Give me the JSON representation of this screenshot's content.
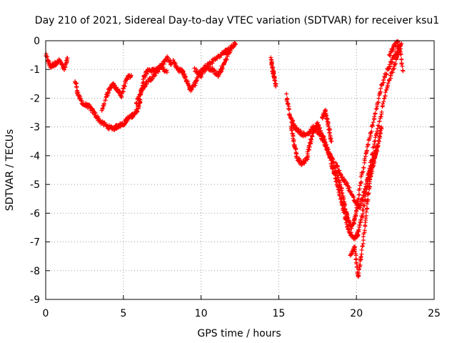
{
  "chart_data": {
    "type": "scatter",
    "title": "Day 210 of 2021, Sidereal Day-to-day VTEC variation (SDTVAR) for receiver ksu1",
    "xlabel": "GPS time / hours",
    "ylabel": "SDTVAR / TECUs",
    "xlim": [
      0,
      25
    ],
    "ylim": [
      -9,
      0
    ],
    "x_ticks": [
      "0",
      "5",
      "10",
      "15",
      "20",
      "25"
    ],
    "y_ticks": [
      "0",
      "-1",
      "-2",
      "-3",
      "-4",
      "-5",
      "-6",
      "-7",
      "-8",
      "-9"
    ],
    "grid": true,
    "marker": "+",
    "series": [
      {
        "color": "#ff0000",
        "curves": [
          [
            [
              0.0,
              -0.5
            ],
            [
              0.3,
              -0.9
            ],
            [
              0.6,
              -0.8
            ],
            [
              0.9,
              -0.7
            ],
            [
              1.2,
              -1.0
            ],
            [
              1.4,
              -0.6
            ]
          ],
          [
            [
              1.9,
              -1.4
            ],
            [
              2.1,
              -1.9
            ],
            [
              2.4,
              -2.2
            ],
            [
              2.8,
              -2.3
            ],
            [
              3.1,
              -2.5
            ],
            [
              3.5,
              -2.8
            ],
            [
              4.0,
              -3.0
            ],
            [
              4.4,
              -3.05
            ],
            [
              4.7,
              -2.95
            ],
            [
              5.0,
              -2.9
            ],
            [
              5.3,
              -2.7
            ],
            [
              5.6,
              -2.6
            ],
            [
              5.9,
              -2.4
            ],
            [
              6.1,
              -2.0
            ],
            [
              6.3,
              -1.3
            ],
            [
              6.6,
              -1.0
            ],
            [
              7.0,
              -1.05
            ],
            [
              7.4,
              -0.9
            ],
            [
              7.8,
              -0.6
            ],
            [
              8.1,
              -0.8
            ]
          ],
          [
            [
              3.6,
              -2.4
            ],
            [
              4.0,
              -1.8
            ],
            [
              4.3,
              -1.5
            ],
            [
              4.6,
              -1.7
            ],
            [
              4.9,
              -1.9
            ],
            [
              5.2,
              -1.3
            ],
            [
              5.5,
              -1.2
            ]
          ],
          [
            [
              5.8,
              -2.2
            ],
            [
              6.2,
              -1.7
            ],
            [
              6.6,
              -1.4
            ],
            [
              7.0,
              -1.2
            ],
            [
              7.4,
              -0.9
            ],
            [
              7.8,
              -1.1
            ]
          ],
          [
            [
              8.2,
              -0.7
            ],
            [
              8.5,
              -1.0
            ],
            [
              8.8,
              -1.05
            ],
            [
              9.0,
              -1.3
            ],
            [
              9.3,
              -1.7
            ],
            [
              9.6,
              -1.5
            ],
            [
              9.9,
              -1.1
            ],
            [
              10.3,
              -0.9
            ],
            [
              10.7,
              -1.0
            ],
            [
              11.1,
              -1.2
            ],
            [
              11.4,
              -0.9
            ],
            [
              11.7,
              -0.5
            ],
            [
              12.0,
              -0.2
            ],
            [
              12.2,
              -0.1
            ]
          ],
          [
            [
              9.6,
              -1.0
            ],
            [
              10.0,
              -1.2
            ],
            [
              10.5,
              -0.8
            ],
            [
              11.0,
              -0.6
            ],
            [
              11.5,
              -0.4
            ],
            [
              11.8,
              -0.3
            ]
          ],
          [
            [
              14.5,
              -0.6
            ],
            [
              14.6,
              -1.0
            ],
            [
              14.7,
              -1.2
            ],
            [
              14.8,
              -1.55
            ]
          ],
          [
            [
              15.5,
              -1.9
            ],
            [
              15.7,
              -2.6
            ],
            [
              16.0,
              -3.0
            ],
            [
              16.4,
              -3.2
            ],
            [
              16.8,
              -3.3
            ],
            [
              17.2,
              -3.0
            ],
            [
              17.6,
              -3.2
            ],
            [
              17.9,
              -3.5
            ],
            [
              18.2,
              -3.9
            ],
            [
              18.5,
              -4.2
            ],
            [
              18.8,
              -4.8
            ],
            [
              19.1,
              -5.3
            ],
            [
              19.3,
              -5.9
            ],
            [
              19.5,
              -6.3
            ],
            [
              19.7,
              -6.5
            ],
            [
              19.9,
              -6.2
            ],
            [
              20.1,
              -5.5
            ],
            [
              20.4,
              -4.5
            ],
            [
              20.8,
              -3.5
            ],
            [
              21.2,
              -2.6
            ],
            [
              21.6,
              -1.6
            ],
            [
              22.0,
              -1.0
            ],
            [
              22.4,
              -0.6
            ],
            [
              22.8,
              -0.15
            ]
          ],
          [
            [
              15.8,
              -3.0
            ],
            [
              16.0,
              -3.6
            ],
            [
              16.2,
              -4.1
            ],
            [
              16.5,
              -4.3
            ],
            [
              16.8,
              -4.1
            ],
            [
              17.0,
              -3.6
            ],
            [
              17.2,
              -3.2
            ],
            [
              17.5,
              -2.9
            ],
            [
              17.8,
              -3.3
            ],
            [
              18.1,
              -3.7
            ],
            [
              18.4,
              -4.3
            ],
            [
              18.7,
              -4.9
            ],
            [
              19.0,
              -5.5
            ],
            [
              19.2,
              -6.0
            ],
            [
              19.5,
              -6.6
            ],
            [
              19.8,
              -6.9
            ],
            [
              20.1,
              -6.7
            ],
            [
              20.4,
              -6.0
            ],
            [
              20.7,
              -5.0
            ],
            [
              21.0,
              -4.0
            ],
            [
              21.4,
              -3.0
            ],
            [
              21.8,
              -2.0
            ],
            [
              22.2,
              -1.2
            ],
            [
              22.6,
              -0.6
            ],
            [
              22.9,
              -0.1
            ]
          ],
          [
            [
              19.6,
              -7.5
            ],
            [
              19.9,
              -7.2
            ],
            [
              20.1,
              -8.2
            ],
            [
              20.3,
              -7.5
            ],
            [
              20.6,
              -6.2
            ],
            [
              20.8,
              -5.2
            ],
            [
              21.0,
              -4.5
            ],
            [
              21.2,
              -4.0
            ],
            [
              21.4,
              -3.6
            ],
            [
              21.6,
              -3.0
            ]
          ],
          [
            [
              18.7,
              -4.3
            ],
            [
              19.0,
              -4.7
            ],
            [
              19.4,
              -5.0
            ],
            [
              19.8,
              -5.5
            ],
            [
              20.2,
              -5.8
            ],
            [
              20.5,
              -5.3
            ],
            [
              20.8,
              -4.6
            ],
            [
              21.1,
              -4.1
            ],
            [
              21.3,
              -3.8
            ]
          ],
          [
            [
              17.8,
              -2.7
            ],
            [
              18.0,
              -2.45
            ],
            [
              18.2,
              -3.0
            ],
            [
              18.4,
              -3.5
            ]
          ],
          [
            [
              22.1,
              -0.5
            ],
            [
              22.4,
              -0.2
            ],
            [
              22.7,
              -0.05
            ],
            [
              23.0,
              -1.05
            ]
          ]
        ]
      }
    ]
  }
}
